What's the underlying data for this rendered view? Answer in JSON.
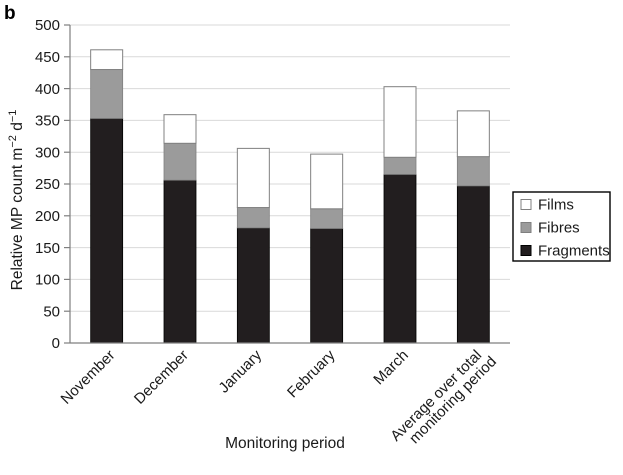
{
  "figure": {
    "panel_label": "b"
  },
  "chart_data": {
    "type": "bar",
    "stacked": true,
    "categories": [
      "November",
      "December",
      "January",
      "February",
      "March",
      "Average over total\nmonitoring period"
    ],
    "series": [
      {
        "name": "Fragments",
        "color": "#221e1f",
        "border": "#000000",
        "values": [
          353,
          256,
          181,
          180,
          265,
          247
        ]
      },
      {
        "name": "Fibres",
        "color": "#9b9b9b",
        "border": "#7f7f7f",
        "values": [
          77,
          58,
          32,
          31,
          27,
          46
        ]
      },
      {
        "name": "Films",
        "color": "#ffffff",
        "border": "#808080",
        "values": [
          31,
          45,
          93,
          86,
          111,
          72
        ]
      }
    ],
    "stack_totals": [
      461,
      359,
      306,
      297,
      403,
      365
    ],
    "legend": {
      "order": [
        "Films",
        "Fibres",
        "Fragments"
      ],
      "position": "right"
    },
    "xlabel": "Monitoring period",
    "ylabel_parts": [
      {
        "text": "Relative MP count m"
      },
      {
        "text": "−2",
        "sup": true
      },
      {
        "text": " d"
      },
      {
        "text": "−1",
        "sup": true
      }
    ],
    "ylim": [
      0,
      500
    ],
    "ytick_step": 50,
    "yticks": [
      0,
      50,
      100,
      150,
      200,
      250,
      300,
      350,
      400,
      450,
      500
    ],
    "grid": true,
    "colors": {
      "gridline": "#d9d9d9",
      "axis": "#7f7f7f",
      "text": "#1a1a1a",
      "legend_border": "#000000",
      "background": "#ffffff"
    }
  }
}
